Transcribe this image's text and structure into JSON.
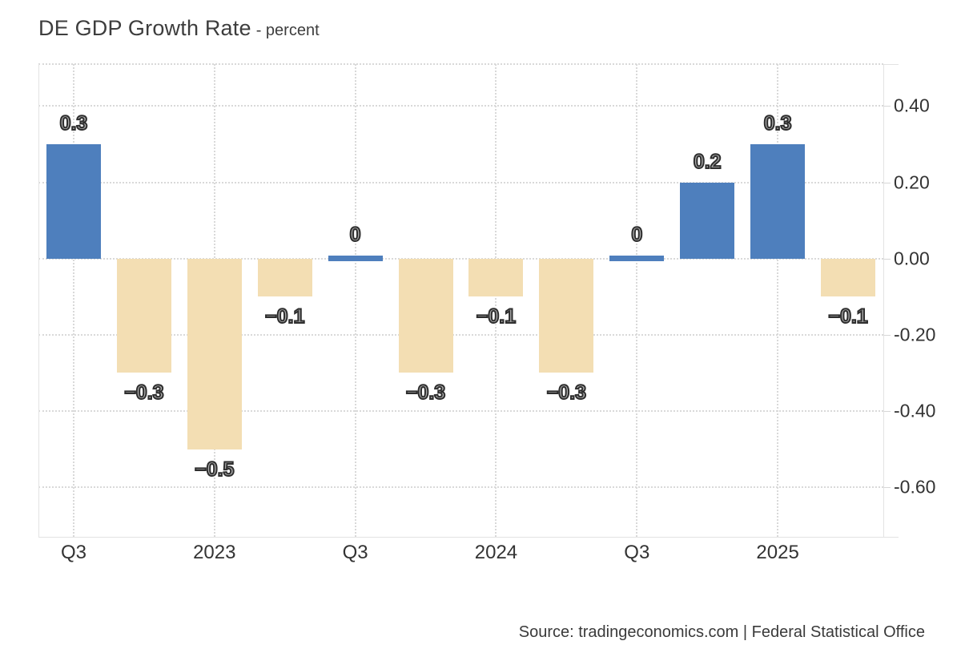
{
  "header": {
    "title": "DE GDP Growth Rate",
    "subtitle": "- percent"
  },
  "footer": {
    "source": "Source: tradingeconomics.com | Federal Statistical Office"
  },
  "chart_data": {
    "type": "bar",
    "title": "DE GDP Growth Rate",
    "units": "percent",
    "points": [
      {
        "value": 0.3,
        "label": "0.3"
      },
      {
        "value": -0.3,
        "label": "−0.3"
      },
      {
        "value": -0.5,
        "label": "−0.5"
      },
      {
        "value": -0.1,
        "label": "−0.1"
      },
      {
        "value": 0,
        "label": "0"
      },
      {
        "value": -0.3,
        "label": "−0.3"
      },
      {
        "value": -0.1,
        "label": "−0.1"
      },
      {
        "value": -0.3,
        "label": "−0.3"
      },
      {
        "value": 0,
        "label": "0"
      },
      {
        "value": 0.2,
        "label": "0.2"
      },
      {
        "value": 0.3,
        "label": "0.3"
      },
      {
        "value": -0.1,
        "label": "−0.1"
      }
    ],
    "x_ticks": [
      {
        "index": 0,
        "label": "Q3"
      },
      {
        "index": 2,
        "label": "2023"
      },
      {
        "index": 4,
        "label": "Q3"
      },
      {
        "index": 6,
        "label": "2024"
      },
      {
        "index": 8,
        "label": "Q3"
      },
      {
        "index": 10,
        "label": "2025"
      }
    ],
    "y_ticks": [
      {
        "value": 0.4,
        "label": "0.40"
      },
      {
        "value": 0.2,
        "label": "0.20"
      },
      {
        "value": 0,
        "label": "0.00"
      },
      {
        "value": -0.2,
        "label": "-0.20"
      },
      {
        "value": -0.4,
        "label": "-0.40"
      },
      {
        "value": -0.6,
        "label": "-0.60"
      }
    ],
    "ylim": [
      -0.73,
      0.51
    ],
    "grid": "dotted",
    "legend": false,
    "colors": {
      "positive": "#4e7fbd",
      "negative": "#f3deb3",
      "grid": "#d9d9d9",
      "axis": "#e3e3e3",
      "value_label_fill": "#a8a8a8",
      "value_label_stroke": "#2e2e2e",
      "text": "#333333"
    }
  }
}
